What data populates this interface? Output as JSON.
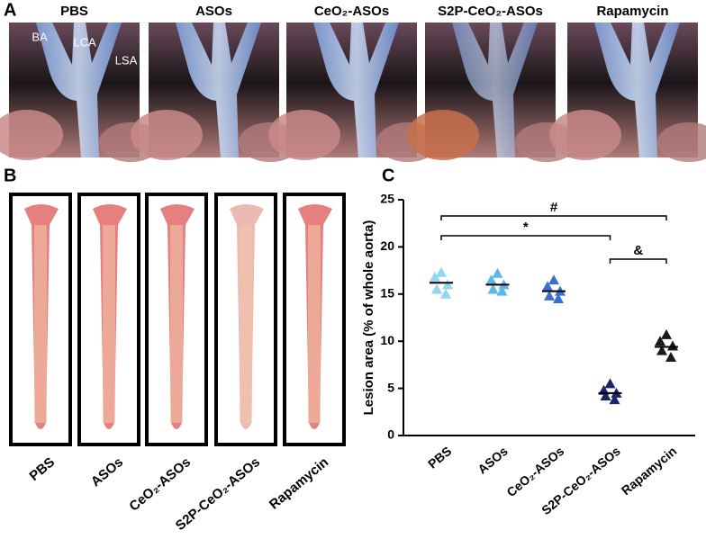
{
  "panel_a": {
    "label": "A",
    "titles": [
      "PBS",
      "ASOs",
      "CeO₂-ASOs",
      "S2P-CeO₂-ASOs",
      "Rapamycin"
    ],
    "annotations": [
      "BA",
      "LCA",
      "LSA"
    ]
  },
  "panel_b": {
    "label": "B",
    "labels": [
      "PBS",
      "ASOs",
      "CeO₂-ASOs",
      "S2P-CeO₂-ASOs",
      "Rapamycin"
    ]
  },
  "chart_data": {
    "type": "scatter",
    "panel_label": "C",
    "ylabel": "Lesion area (% of whole aorta)",
    "categories": [
      "PBS",
      "ASOs",
      "CeO₂-ASOs",
      "S2P-CeO₂-ASOs",
      "Rapamycin"
    ],
    "groups": [
      {
        "color": "#8fd6f2",
        "values": [
          17.3,
          16.8,
          16.0,
          15.5,
          15.0
        ],
        "mean": 16.2
      },
      {
        "color": "#5cb8ea",
        "values": [
          17.2,
          16.5,
          16.0,
          15.5,
          15.3
        ],
        "mean": 16.0
      },
      {
        "color": "#3a6fcb",
        "values": [
          16.5,
          15.8,
          15.3,
          14.8,
          14.5
        ],
        "mean": 15.3
      },
      {
        "color": "#1b2468",
        "values": [
          5.5,
          4.8,
          4.5,
          4.2,
          3.8
        ],
        "mean": 4.5
      },
      {
        "color": "#1a1a1a",
        "values": [
          10.7,
          10.0,
          9.5,
          9.0,
          8.3
        ],
        "mean": 9.4
      }
    ],
    "ylim": [
      0,
      25
    ],
    "yticks": [
      0,
      5,
      10,
      15,
      20,
      25
    ],
    "significance": [
      {
        "label": "#",
        "from": 0,
        "to": 4
      },
      {
        "label": "*",
        "from": 0,
        "to": 3
      },
      {
        "label": "&",
        "from": 3,
        "to": 4
      }
    ]
  }
}
